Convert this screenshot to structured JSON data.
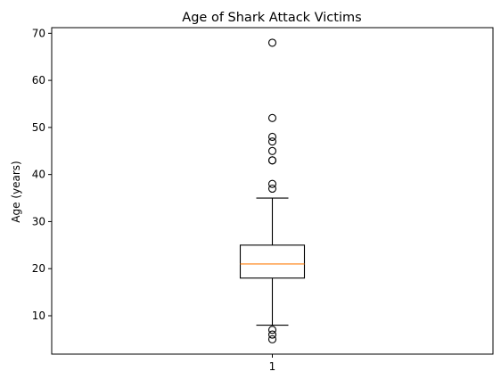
{
  "chart_data": {
    "type": "box",
    "title": "Age of Shark Attack Victims",
    "xlabel": "",
    "ylabel": "Age (years)",
    "ylim": [
      1.85,
      71.2
    ],
    "categories": [
      "1"
    ],
    "y_ticks": [
      10,
      20,
      30,
      40,
      50,
      60,
      70
    ],
    "grid": false,
    "boxes": [
      {
        "category": "1",
        "whisker_low": 8,
        "q1": 18,
        "median": 21,
        "q3": 25,
        "whisker_high": 35,
        "outliers": [
          5,
          6,
          7,
          37,
          38,
          43,
          43,
          45,
          47,
          48,
          52,
          68
        ]
      }
    ],
    "colors": {
      "box": "#000000",
      "median": "#ff7f0e",
      "outlier": "#000000"
    }
  }
}
